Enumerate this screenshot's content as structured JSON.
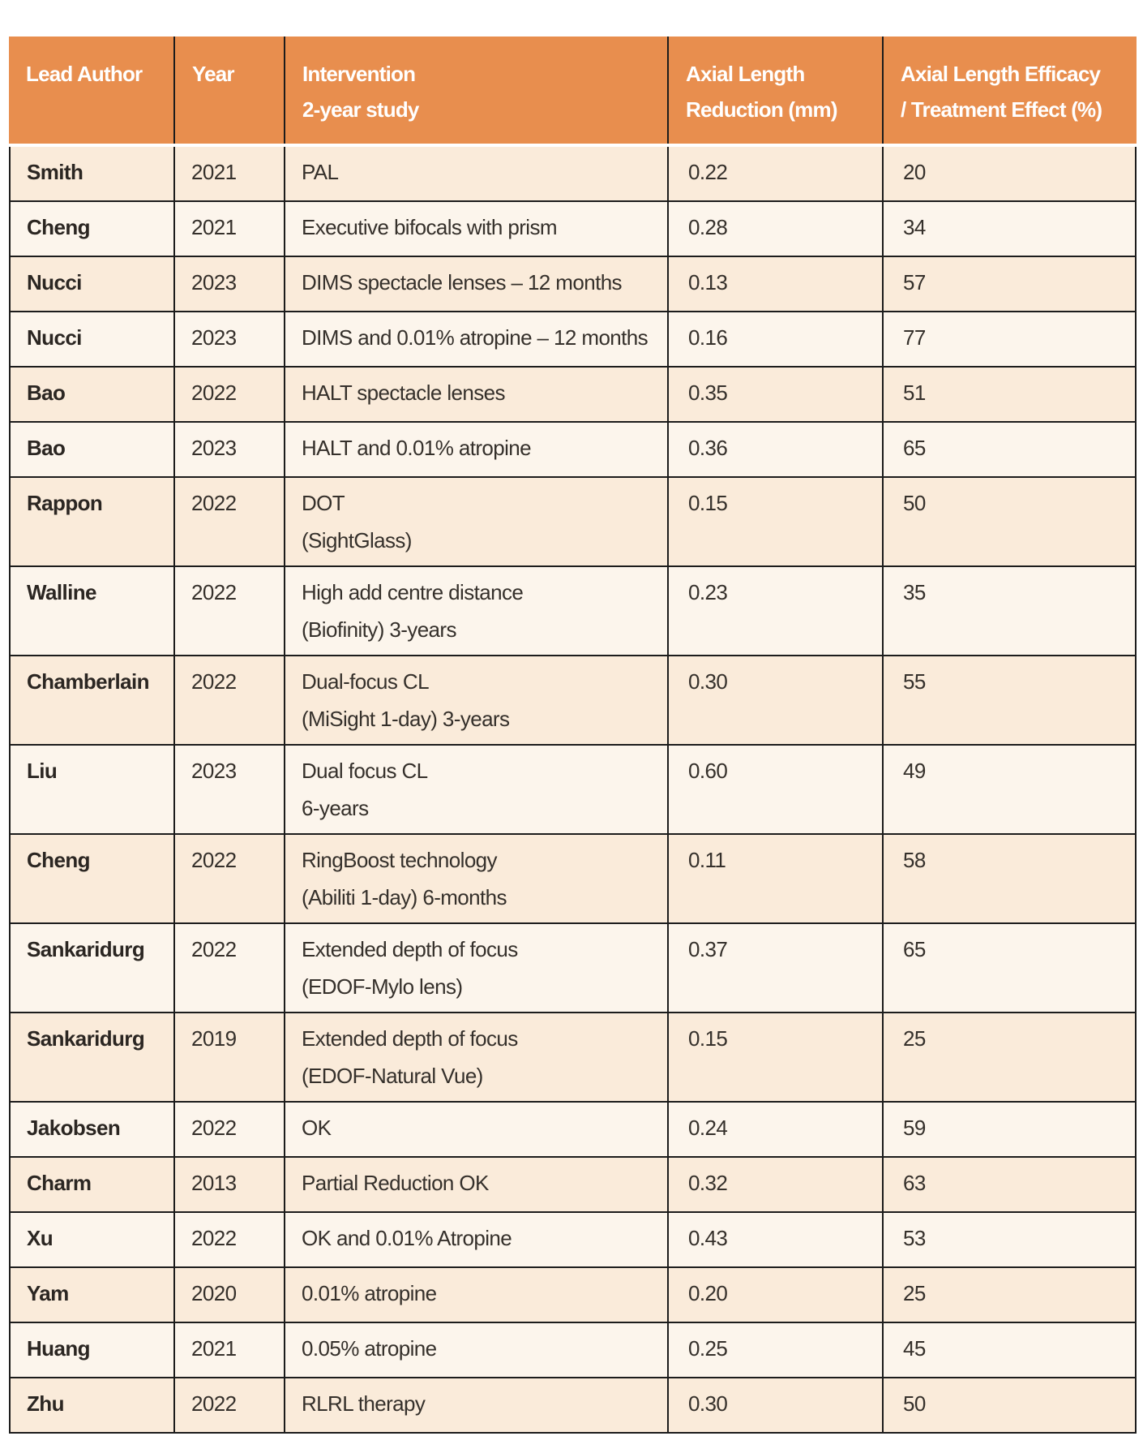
{
  "colors": {
    "header_bg": "#E88E4E",
    "row_alt_peach": "#FAEBDA",
    "row_alt_cream": "#FCF5EC",
    "border": "#1C1C1C",
    "header_text": "#FFFFFF",
    "body_text": "#35302B"
  },
  "table": {
    "columns": [
      {
        "key": "lead-author",
        "label_lines": [
          "Lead Author"
        ]
      },
      {
        "key": "year",
        "label_lines": [
          "Year"
        ]
      },
      {
        "key": "intervention",
        "label_lines": [
          "Intervention",
          "2-year study"
        ]
      },
      {
        "key": "axial-length-reduction",
        "label_lines": [
          "Axial Length",
          "Reduction (mm)"
        ]
      },
      {
        "key": "axial-length-efficacy",
        "label_lines": [
          "Axial Length Efficacy",
          "/ Treatment Effect (%)"
        ]
      }
    ],
    "rows": [
      {
        "author": "Smith",
        "year": "2021",
        "intervention_lines": [
          "PAL"
        ],
        "axial_reduction_mm": "0.22",
        "efficacy_pct": "20"
      },
      {
        "author": "Cheng",
        "year": "2021",
        "intervention_lines": [
          "Executive bifocals with prism"
        ],
        "axial_reduction_mm": "0.28",
        "efficacy_pct": "34"
      },
      {
        "author": "Nucci",
        "year": "2023",
        "intervention_lines": [
          "DIMS spectacle lenses – 12 months"
        ],
        "axial_reduction_mm": "0.13",
        "efficacy_pct": "57"
      },
      {
        "author": "Nucci",
        "year": "2023",
        "intervention_lines": [
          "DIMS and 0.01% atropine – 12 months"
        ],
        "axial_reduction_mm": "0.16",
        "efficacy_pct": "77"
      },
      {
        "author": "Bao",
        "year": "2022",
        "intervention_lines": [
          "HALT spectacle lenses"
        ],
        "axial_reduction_mm": "0.35",
        "efficacy_pct": "51"
      },
      {
        "author": "Bao",
        "year": "2023",
        "intervention_lines": [
          "HALT and 0.01% atropine"
        ],
        "axial_reduction_mm": "0.36",
        "efficacy_pct": "65"
      },
      {
        "author": "Rappon",
        "year": "2022",
        "intervention_lines": [
          "DOT",
          "(SightGlass)"
        ],
        "axial_reduction_mm": "0.15",
        "efficacy_pct": "50"
      },
      {
        "author": "Walline",
        "year": "2022",
        "intervention_lines": [
          "High add centre distance",
          "(Biofinity) 3-years"
        ],
        "axial_reduction_mm": "0.23",
        "efficacy_pct": "35"
      },
      {
        "author": "Chamberlain",
        "year": "2022",
        "intervention_lines": [
          "Dual-focus CL",
          "(MiSight 1-day) 3-years"
        ],
        "axial_reduction_mm": "0.30",
        "efficacy_pct": "55"
      },
      {
        "author": "Liu",
        "year": "2023",
        "intervention_lines": [
          "Dual focus CL",
          "6-years"
        ],
        "axial_reduction_mm": "0.60",
        "efficacy_pct": "49"
      },
      {
        "author": "Cheng",
        "year": "2022",
        "intervention_lines": [
          "RingBoost technology",
          "(Abiliti 1-day) 6-months"
        ],
        "axial_reduction_mm": "0.11",
        "efficacy_pct": "58"
      },
      {
        "author": "Sankaridurg",
        "year": "2022",
        "intervention_lines": [
          "Extended depth of focus",
          "(EDOF-Mylo lens)"
        ],
        "axial_reduction_mm": "0.37",
        "efficacy_pct": "65"
      },
      {
        "author": "Sankaridurg",
        "year": "2019",
        "intervention_lines": [
          "Extended depth of focus",
          "(EDOF-Natural Vue)"
        ],
        "axial_reduction_mm": "0.15",
        "efficacy_pct": "25"
      },
      {
        "author": "Jakobsen",
        "year": "2022",
        "intervention_lines": [
          "OK"
        ],
        "axial_reduction_mm": "0.24",
        "efficacy_pct": "59"
      },
      {
        "author": "Charm",
        "year": "2013",
        "intervention_lines": [
          "Partial Reduction OK"
        ],
        "axial_reduction_mm": "0.32",
        "efficacy_pct": "63"
      },
      {
        "author": "Xu",
        "year": "2022",
        "intervention_lines": [
          "OK and 0.01% Atropine"
        ],
        "axial_reduction_mm": "0.43",
        "efficacy_pct": "53"
      },
      {
        "author": "Yam",
        "year": "2020",
        "intervention_lines": [
          "0.01% atropine"
        ],
        "axial_reduction_mm": "0.20",
        "efficacy_pct": "25"
      },
      {
        "author": "Huang",
        "year": "2021",
        "intervention_lines": [
          "0.05% atropine"
        ],
        "axial_reduction_mm": "0.25",
        "efficacy_pct": "45"
      },
      {
        "author": "Zhu",
        "year": "2022",
        "intervention_lines": [
          "RLRL therapy"
        ],
        "axial_reduction_mm": "0.30",
        "efficacy_pct": "50"
      }
    ]
  }
}
